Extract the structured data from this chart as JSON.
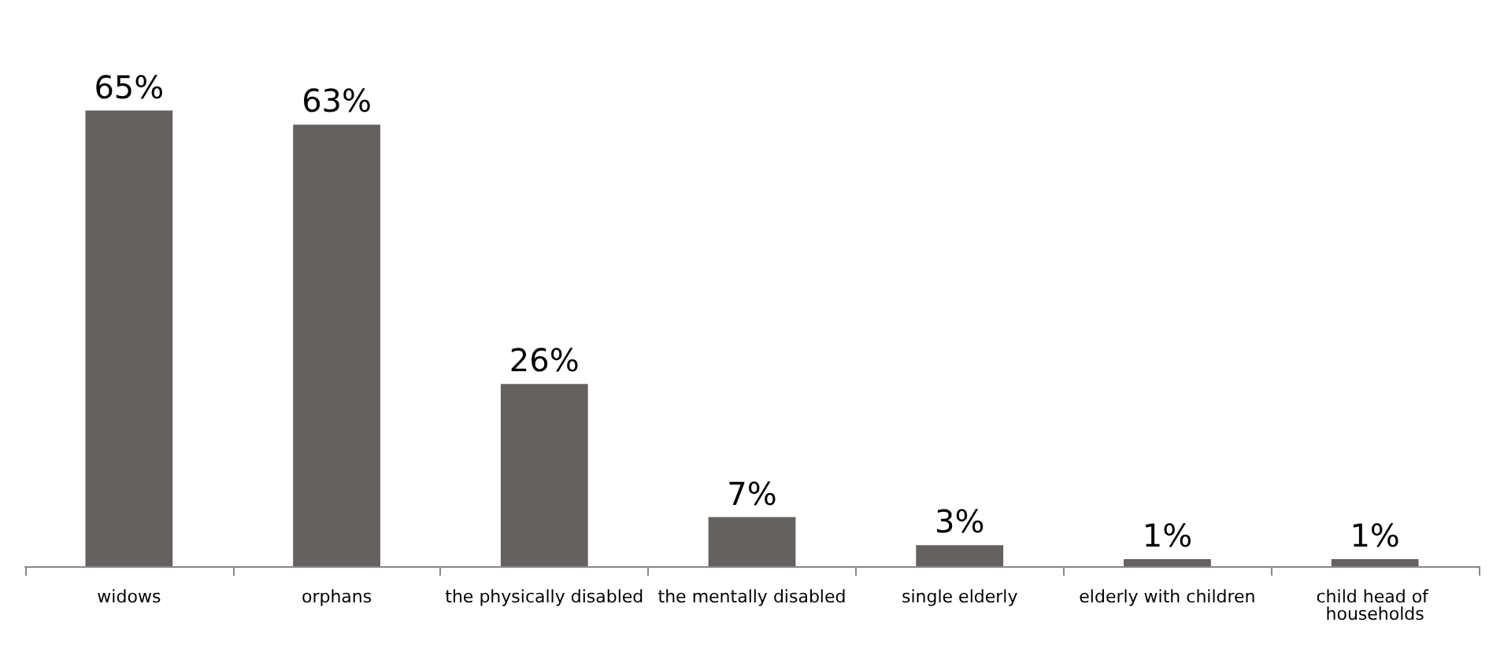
{
  "chart_data": {
    "type": "bar",
    "categories": [
      "widows",
      "orphans",
      "the physically disabled",
      "the mentally disabled",
      "single elderly",
      "elderly with children",
      "child head of households"
    ],
    "values": [
      65,
      63,
      26,
      7,
      3,
      1,
      1
    ],
    "value_labels": [
      "65%",
      "63%",
      "26%",
      "7%",
      "3%",
      "1%",
      "1%"
    ],
    "color": "#666161",
    "grid": false,
    "tick_labels": "x"
  }
}
